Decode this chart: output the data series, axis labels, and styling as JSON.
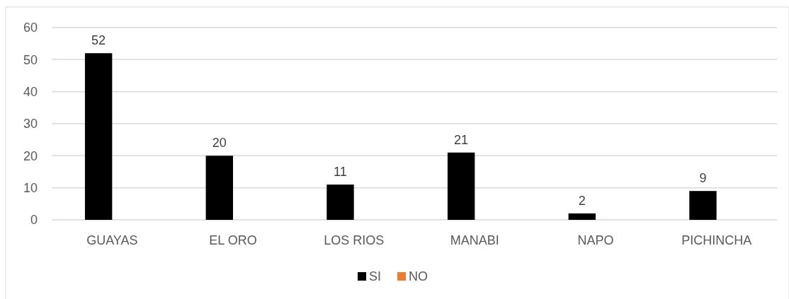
{
  "chart_data": {
    "type": "bar",
    "categories": [
      "GUAYAS",
      "EL ORO",
      "LOS RIOS",
      "MANABI",
      "NAPO",
      "PICHINCHA"
    ],
    "series": [
      {
        "name": "SI",
        "color": "#000000",
        "values": [
          52,
          20,
          11,
          21,
          2,
          9
        ]
      },
      {
        "name": "NO",
        "color": "#ed7d31",
        "values": [
          null,
          null,
          null,
          null,
          null,
          null
        ]
      }
    ],
    "ylim": [
      0,
      60
    ],
    "yticks": [
      0,
      10,
      20,
      30,
      40,
      50,
      60
    ],
    "grid": "y",
    "legend": "bottom",
    "data_labels": true
  }
}
